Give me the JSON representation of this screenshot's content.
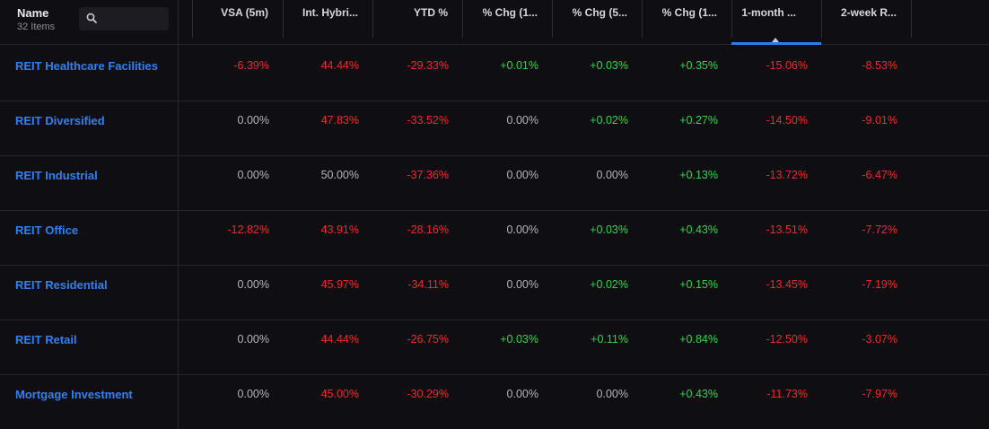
{
  "header": {
    "name_label": "Name",
    "count_label": "32 Items",
    "search_placeholder": "",
    "columns": [
      {
        "label": "VSA (5m)"
      },
      {
        "label": "Int. Hybri..."
      },
      {
        "label": "YTD %"
      },
      {
        "label": "% Chg (1..."
      },
      {
        "label": "% Chg (5..."
      },
      {
        "label": "% Chg (1..."
      },
      {
        "label": "1-month ..."
      },
      {
        "label": "2-week R..."
      }
    ],
    "sorted_column": "1-month ...",
    "sort_direction": "ascending"
  },
  "colors": {
    "background": "#0f0f13",
    "link": "#2f80f0",
    "negative": "#f0262c",
    "positive": "#2bd44b",
    "neutral": "#b4b4bc",
    "sort_indicator": "#2f7bf5"
  },
  "rows": [
    {
      "name": "REIT Healthcare Facilities",
      "values": [
        "-6.39%",
        "44.44%",
        "-29.33%",
        "+0.01%",
        "+0.03%",
        "+0.35%",
        "-15.06%",
        "-8.53%"
      ],
      "tones": [
        "neg",
        "neg",
        "neg",
        "pos",
        "pos",
        "pos",
        "neg",
        "neg"
      ]
    },
    {
      "name": "REIT Diversified",
      "values": [
        "0.00%",
        "47.83%",
        "-33.52%",
        "0.00%",
        "+0.02%",
        "+0.27%",
        "-14.50%",
        "-9.01%"
      ],
      "tones": [
        "neu",
        "neg",
        "neg",
        "neu",
        "pos",
        "pos",
        "neg",
        "neg"
      ]
    },
    {
      "name": "REIT Industrial",
      "values": [
        "0.00%",
        "50.00%",
        "-37.36%",
        "0.00%",
        "0.00%",
        "+0.13%",
        "-13.72%",
        "-6.47%"
      ],
      "tones": [
        "neu",
        "neu",
        "neg",
        "neu",
        "neu",
        "pos",
        "neg",
        "neg"
      ]
    },
    {
      "name": "REIT Office",
      "values": [
        "-12.82%",
        "43.91%",
        "-28.16%",
        "0.00%",
        "+0.03%",
        "+0.43%",
        "-13.51%",
        "-7.72%"
      ],
      "tones": [
        "neg",
        "neg",
        "neg",
        "neu",
        "pos",
        "pos",
        "neg",
        "neg"
      ]
    },
    {
      "name": "REIT Residential",
      "values": [
        "0.00%",
        "45.97%",
        "-34.11%",
        "0.00%",
        "+0.02%",
        "+0.15%",
        "-13.45%",
        "-7.19%"
      ],
      "tones": [
        "neu",
        "neg",
        "neg",
        "neu",
        "pos",
        "pos",
        "neg",
        "neg"
      ]
    },
    {
      "name": "REIT Retail",
      "values": [
        "0.00%",
        "44.44%",
        "-26.75%",
        "+0.03%",
        "+0.11%",
        "+0.84%",
        "-12.50%",
        "-3.07%"
      ],
      "tones": [
        "neu",
        "neg",
        "neg",
        "pos",
        "pos",
        "pos",
        "neg",
        "neg"
      ]
    },
    {
      "name": "Mortgage Investment",
      "values": [
        "0.00%",
        "45.00%",
        "-30.29%",
        "0.00%",
        "0.00%",
        "+0.43%",
        "-11.73%",
        "-7.97%"
      ],
      "tones": [
        "neu",
        "neg",
        "neg",
        "neu",
        "neu",
        "pos",
        "neg",
        "neg"
      ]
    }
  ]
}
